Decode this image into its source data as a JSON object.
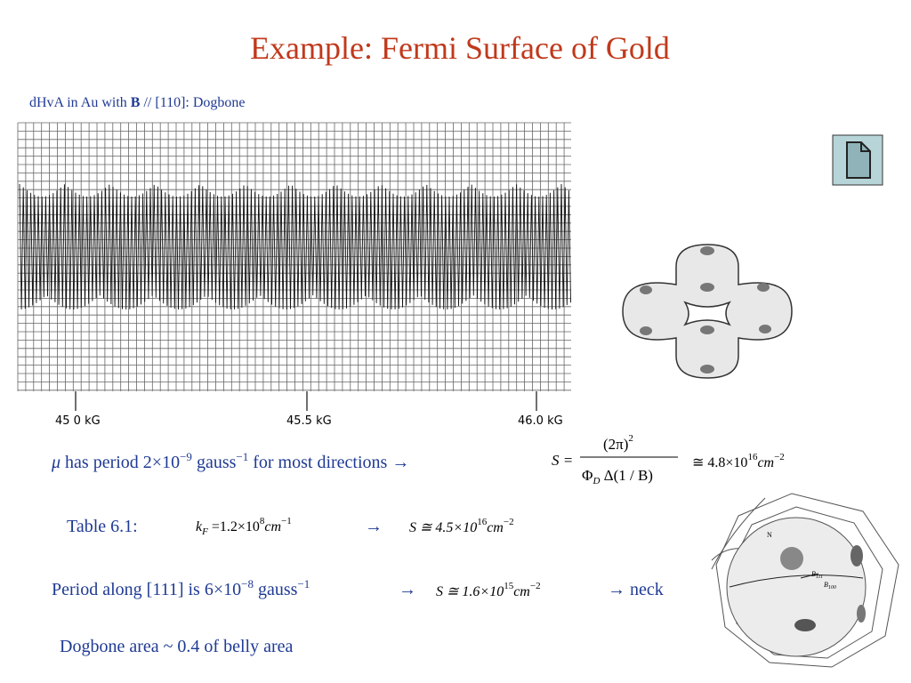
{
  "title": "Example: Fermi Surface of Gold",
  "caption": {
    "prefix": "dHvA  in   Au with ",
    "bold": "B",
    "suffix": " // [110]:   Dogbone"
  },
  "graph": {
    "x_labels": [
      "45 0 kG",
      "45.5 kG",
      "46.0 kG"
    ]
  },
  "line1": {
    "mu": "μ",
    "a": "  has period 2×10",
    "e1": "−9",
    "b": " gauss",
    "e2": "−1",
    "c": " for most directions  →"
  },
  "formula1": {
    "lhs": "S =",
    "num": "(2π)",
    "num_exp": "2",
    "den_a": "Φ",
    "den_sub": "D",
    "den_b": " Δ(1 / B)",
    "approx": "≅ 4.8×10",
    "exp": "16",
    "unit": "cm",
    "unit_exp": "−2"
  },
  "table_row": {
    "label": "Table 6.1:",
    "k": "k",
    "k_sub": "F",
    "val": " =1.2×10",
    "exp": "8",
    "unit": "cm",
    "unit_exp": "−1",
    "arrow": "→",
    "s": "S ≅ 4.5×10",
    "s_exp": "16",
    "s_unit": "cm",
    "s_unit_exp": "−2"
  },
  "period_row": {
    "a": "Period along [111] is 6×10",
    "e1": "−8",
    "b": " gauss",
    "e2": "−1",
    "arrow": "→",
    "s": "S ≅ 1.6×10",
    "s_exp": "15",
    "s_unit": "cm",
    "s_unit_exp": "−2",
    "neck": "→  neck"
  },
  "dogbone_note": "Dogbone area ~ 0.4 of belly area",
  "fs_labels": {
    "n": "N",
    "b1": "B",
    "b1_sub": "111",
    "b2": "B",
    "b2_sub": "100"
  }
}
